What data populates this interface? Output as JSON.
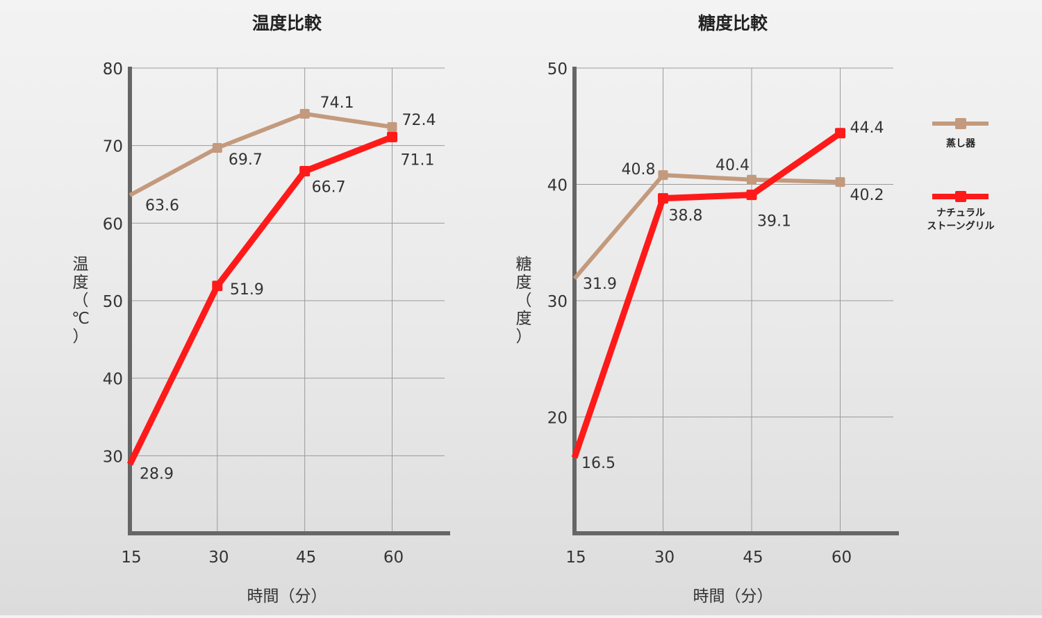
{
  "legend": {
    "items": [
      {
        "label_lines": [
          "蒸し器"
        ],
        "color": "#c39a7d"
      },
      {
        "label_lines": [
          "ナチュラル",
          "ストーングリル"
        ],
        "color": "#ff1a1a"
      }
    ]
  },
  "chart_data": [
    {
      "type": "line",
      "title": "温度比較",
      "xlabel": "時間（分）",
      "ylabel_lines": [
        "温",
        "度",
        "（",
        "℃",
        "）"
      ],
      "x": [
        15,
        30,
        45,
        60
      ],
      "xlim": [
        15,
        69
      ],
      "ylim": [
        20,
        80
      ],
      "yticks": [
        30,
        40,
        50,
        60,
        70,
        80
      ],
      "grid": true,
      "series": [
        {
          "name": "蒸し器",
          "color": "#c39a7d",
          "values": [
            63.6,
            69.7,
            74.1,
            72.4
          ]
        },
        {
          "name": "ナチュラルストーングリル",
          "color": "#ff1a1a",
          "values": [
            28.9,
            51.9,
            66.7,
            71.1
          ]
        }
      ]
    },
    {
      "type": "line",
      "title": "糖度比較",
      "xlabel": "時間（分）",
      "ylabel_lines": [
        "糖",
        "度",
        "（",
        "度",
        "）"
      ],
      "x": [
        15,
        30,
        45,
        60
      ],
      "xlim": [
        15,
        69
      ],
      "ylim": [
        10,
        50
      ],
      "yticks": [
        20,
        30,
        40,
        50
      ],
      "grid": true,
      "series": [
        {
          "name": "蒸し器",
          "color": "#c39a7d",
          "values": [
            31.9,
            40.8,
            40.4,
            40.2
          ]
        },
        {
          "name": "ナチュラルストーングリル",
          "color": "#ff1a1a",
          "values": [
            16.5,
            38.8,
            39.1,
            44.4
          ]
        }
      ]
    }
  ]
}
